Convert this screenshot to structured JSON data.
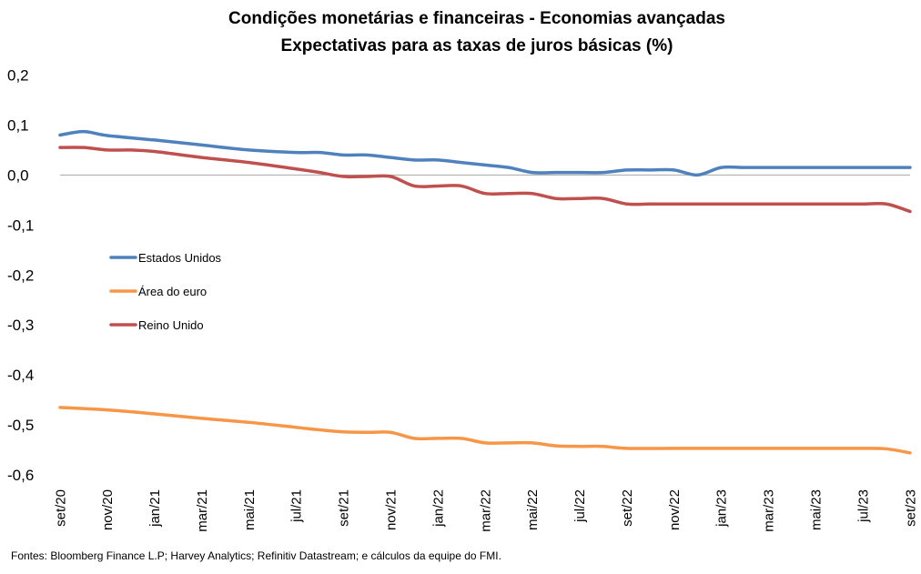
{
  "chart_data": {
    "type": "line",
    "title": "Condições monetárias e financeiras - Economias avançadas",
    "subtitle": "Expectativas para as taxas de juros básicas (%)",
    "source": "Fontes: Bloomberg Finance L.P; Harvey Analytics; Refinitiv Datastream; e cálculos da equipe do FMI.",
    "x_tick_labels": [
      "set/20",
      "nov/20",
      "jan/21",
      "mar/21",
      "mai/21",
      "jul/21",
      "set/21",
      "nov/21",
      "jan/22",
      "mar/22",
      "mai/22",
      "jul/22",
      "set/22",
      "nov/22",
      "jan/23",
      "mar/23",
      "mai/23",
      "jul/23",
      "set/23"
    ],
    "y_tick_labels": [
      "0,2",
      "0,1",
      "0,0",
      "-0,1",
      "-0,2",
      "-0,3",
      "-0,4",
      "-0,5",
      "-0,6"
    ],
    "ylim": [
      -0.6,
      0.2
    ],
    "legend_position": "left",
    "series": [
      {
        "name": "Estados Unidos",
        "color": "#4F81BD",
        "x": [
          0,
          0.5,
          1,
          2,
          3,
          4,
          5,
          5.5,
          6,
          6.5,
          7,
          7.5,
          8,
          8.5,
          9,
          9.5,
          10,
          10.5,
          11,
          11.5,
          12,
          12.5,
          13,
          13.5,
          14,
          14.5,
          15,
          16,
          17,
          18
        ],
        "values": [
          0.08,
          0.087,
          0.079,
          0.07,
          0.06,
          0.05,
          0.045,
          0.045,
          0.04,
          0.04,
          0.035,
          0.03,
          0.03,
          0.025,
          0.02,
          0.015,
          0.005,
          0.005,
          0.005,
          0.005,
          0.01,
          0.01,
          0.01,
          0.0,
          0.015,
          0.015,
          0.015,
          0.015,
          0.015,
          0.015
        ]
      },
      {
        "name": "Área do euro",
        "color": "#F79646",
        "x": [
          0,
          1,
          2,
          3,
          4,
          5,
          5.5,
          6,
          6.5,
          7,
          7.5,
          8,
          8.5,
          9,
          9.5,
          10,
          10.5,
          11,
          11.5,
          12,
          13,
          14,
          15,
          16,
          17,
          17.5,
          18
        ],
        "values": [
          -0.465,
          -0.47,
          -0.478,
          -0.487,
          -0.495,
          -0.505,
          -0.51,
          -0.514,
          -0.515,
          -0.515,
          -0.527,
          -0.527,
          -0.527,
          -0.536,
          -0.536,
          -0.536,
          -0.542,
          -0.543,
          -0.543,
          -0.547,
          -0.547,
          -0.547,
          -0.547,
          -0.547,
          -0.547,
          -0.548,
          -0.556
        ]
      },
      {
        "name": "Reino Unido",
        "color": "#C0504D",
        "x": [
          0,
          0.5,
          1,
          1.5,
          2,
          3,
          4,
          5,
          5.5,
          6,
          6.5,
          7,
          7.5,
          8,
          8.5,
          9,
          9.5,
          10,
          10.5,
          11,
          11.5,
          12,
          12.5,
          13,
          14,
          15,
          16,
          17,
          17.5,
          18
        ],
        "values": [
          0.055,
          0.055,
          0.05,
          0.05,
          0.047,
          0.035,
          0.025,
          0.012,
          0.005,
          -0.003,
          -0.003,
          -0.003,
          -0.022,
          -0.022,
          -0.022,
          -0.037,
          -0.037,
          -0.037,
          -0.047,
          -0.047,
          -0.047,
          -0.058,
          -0.058,
          -0.058,
          -0.058,
          -0.058,
          -0.058,
          -0.058,
          -0.058,
          -0.073
        ]
      }
    ]
  }
}
